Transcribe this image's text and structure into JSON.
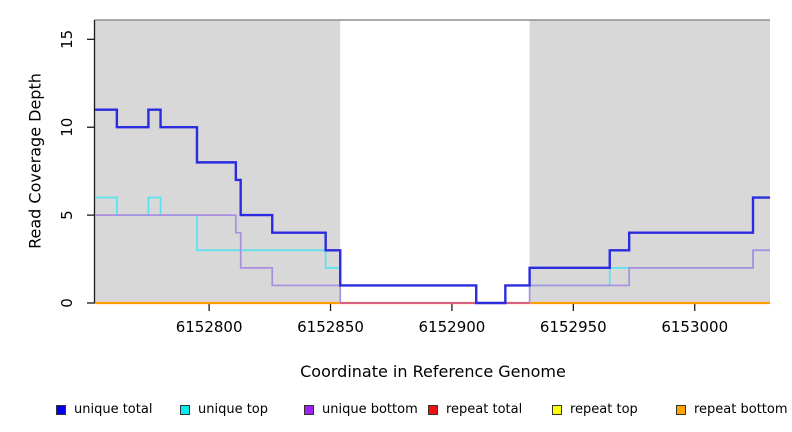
{
  "chart_data": {
    "type": "line",
    "step": true,
    "title": "",
    "xlabel": "Coordinate in Reference Genome",
    "ylabel": "Read Coverage Depth",
    "xlim": [
      6152753,
      6153031
    ],
    "ylim": [
      0,
      16.1
    ],
    "grid": false,
    "x_ticks": {
      "values": [
        6152800,
        6152850,
        6152900,
        6152950,
        6153000
      ],
      "labels": [
        "6152800",
        "6152850",
        "6152900",
        "6152950",
        "6153000"
      ]
    },
    "y_ticks": {
      "values": [
        0,
        5,
        10,
        15
      ],
      "labels": [
        "0",
        "5",
        "10",
        "15"
      ]
    },
    "shaded_regions": [
      {
        "from": 6152753,
        "to": 6152854
      },
      {
        "from": 6152932,
        "to": 6153031
      }
    ],
    "region_fill": "#d8d8d8",
    "frame_top_color": "#8f8f8f",
    "axis_color": "#1a1a1a",
    "x_end": 6153031,
    "series": [
      {
        "name": "repeat total",
        "color": "#e00000",
        "width": 2,
        "points": [
          [
            6152753,
            0
          ]
        ]
      },
      {
        "name": "repeat top",
        "color": "#ffff00",
        "width": 2,
        "points": [
          [
            6152753,
            0
          ]
        ]
      },
      {
        "name": "repeat bottom",
        "color": "#ff9e05",
        "width": 2.2,
        "points": [
          [
            6152753,
            0
          ]
        ]
      },
      {
        "name": "unique top",
        "color": "#58e2ee",
        "width": 1.7,
        "points": [
          [
            6152753,
            6
          ],
          [
            6152762,
            5
          ],
          [
            6152775,
            6
          ],
          [
            6152780,
            5
          ],
          [
            6152795,
            3
          ],
          [
            6152848,
            2
          ],
          [
            6152854,
            1
          ],
          [
            6152910,
            0
          ],
          [
            6152922,
            1
          ],
          [
            6152965,
            2
          ],
          [
            6153024,
            3
          ]
        ]
      },
      {
        "name": "unique bottom",
        "color": "#a98fe0",
        "width": 1.7,
        "points": [
          [
            6152753,
            5
          ],
          [
            6152811,
            4
          ],
          [
            6152813,
            2
          ],
          [
            6152826,
            1
          ],
          [
            6152854,
            0
          ],
          [
            6152932,
            1
          ],
          [
            6152973,
            2
          ],
          [
            6153024,
            3
          ]
        ]
      },
      {
        "name": "unique total",
        "color": "#2b2be0",
        "width": 2.4,
        "points": [
          [
            6152753,
            11
          ],
          [
            6152762,
            10
          ],
          [
            6152775,
            11
          ],
          [
            6152780,
            10
          ],
          [
            6152795,
            8
          ],
          [
            6152811,
            7
          ],
          [
            6152813,
            5
          ],
          [
            6152826,
            4
          ],
          [
            6152848,
            3
          ],
          [
            6152854,
            1
          ],
          [
            6152910,
            0
          ],
          [
            6152922,
            1
          ],
          [
            6152932,
            2
          ],
          [
            6152965,
            3
          ],
          [
            6152973,
            4
          ],
          [
            6153024,
            6
          ]
        ]
      }
    ],
    "zero_overlay": {
      "from": 6152854,
      "to": 6152932,
      "color": "#d4637f",
      "value": 0
    },
    "legend_position": "bottom"
  },
  "legend": {
    "items": [
      {
        "label": "unique total",
        "color": "#0000ee"
      },
      {
        "label": "unique top",
        "color": "#00eeee"
      },
      {
        "label": "unique bottom",
        "color": "#a020f0"
      },
      {
        "label": "repeat total",
        "color": "#ee1111"
      },
      {
        "label": "repeat top",
        "color": "#ffff00"
      },
      {
        "label": "repeat bottom",
        "color": "#ffa500"
      }
    ]
  }
}
